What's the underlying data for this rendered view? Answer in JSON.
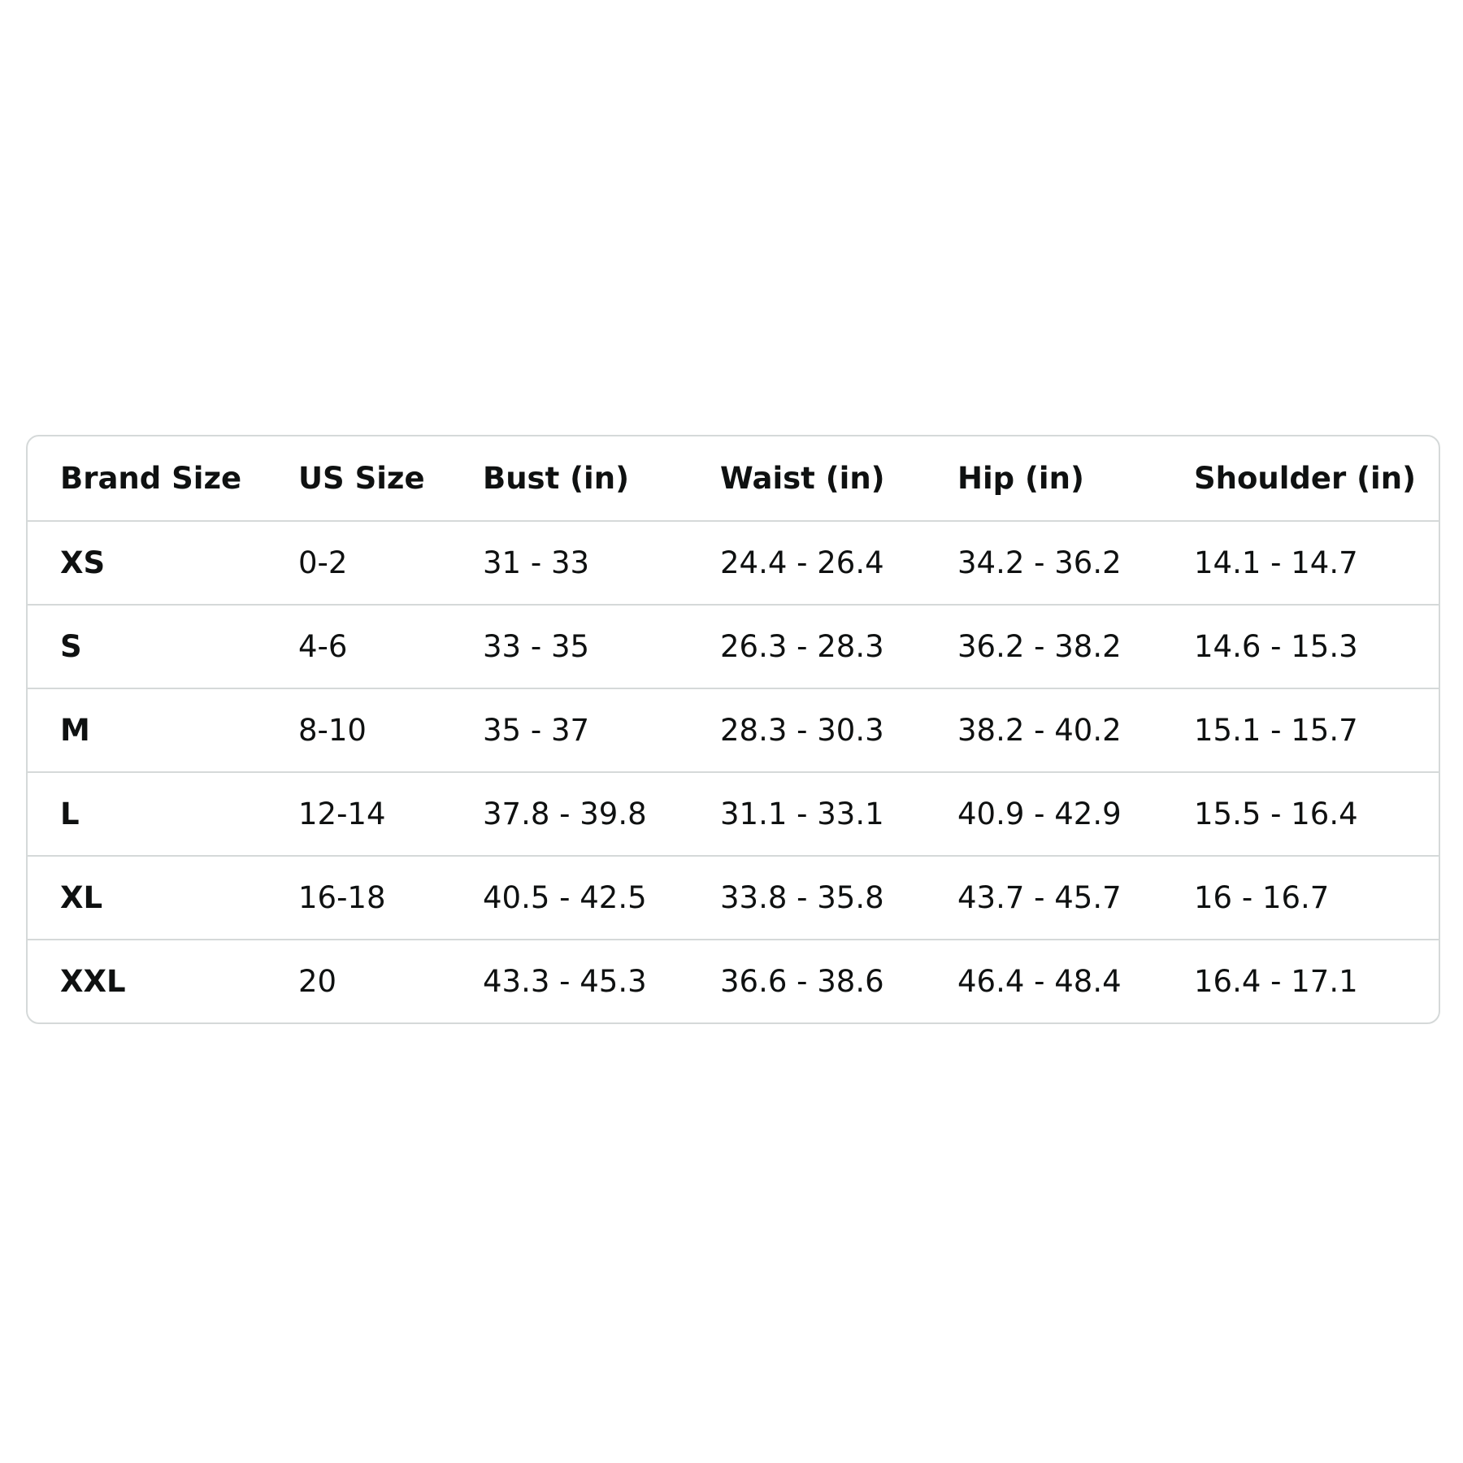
{
  "table": {
    "header": [
      "Brand Size",
      "US Size",
      "Bust (in)",
      "Waist (in)",
      "Hip (in)",
      "Shoulder (in)"
    ],
    "rows": [
      [
        "XS",
        "0-2",
        "31 - 33",
        "24.4 - 26.4",
        "34.2 - 36.2",
        "14.1 - 14.7"
      ],
      [
        "S",
        "4-6",
        "33 - 35",
        "26.3 - 28.3",
        "36.2 - 38.2",
        "14.6 - 15.3"
      ],
      [
        "M",
        "8-10",
        "35 - 37",
        "28.3 - 30.3",
        "38.2 - 40.2",
        "15.1 - 15.7"
      ],
      [
        "L",
        "12-14",
        "37.8 - 39.8",
        "31.1 - 33.1",
        "40.9 - 42.9",
        "15.5 - 16.4"
      ],
      [
        "XL",
        "16-18",
        "40.5 - 42.5",
        "33.8 - 35.8",
        "43.7 - 45.7",
        "16 - 16.7"
      ],
      [
        "XXL",
        "20",
        "43.3 - 45.3",
        "36.6 - 38.6",
        "46.4 - 48.4",
        "16.4 - 17.1"
      ]
    ]
  }
}
